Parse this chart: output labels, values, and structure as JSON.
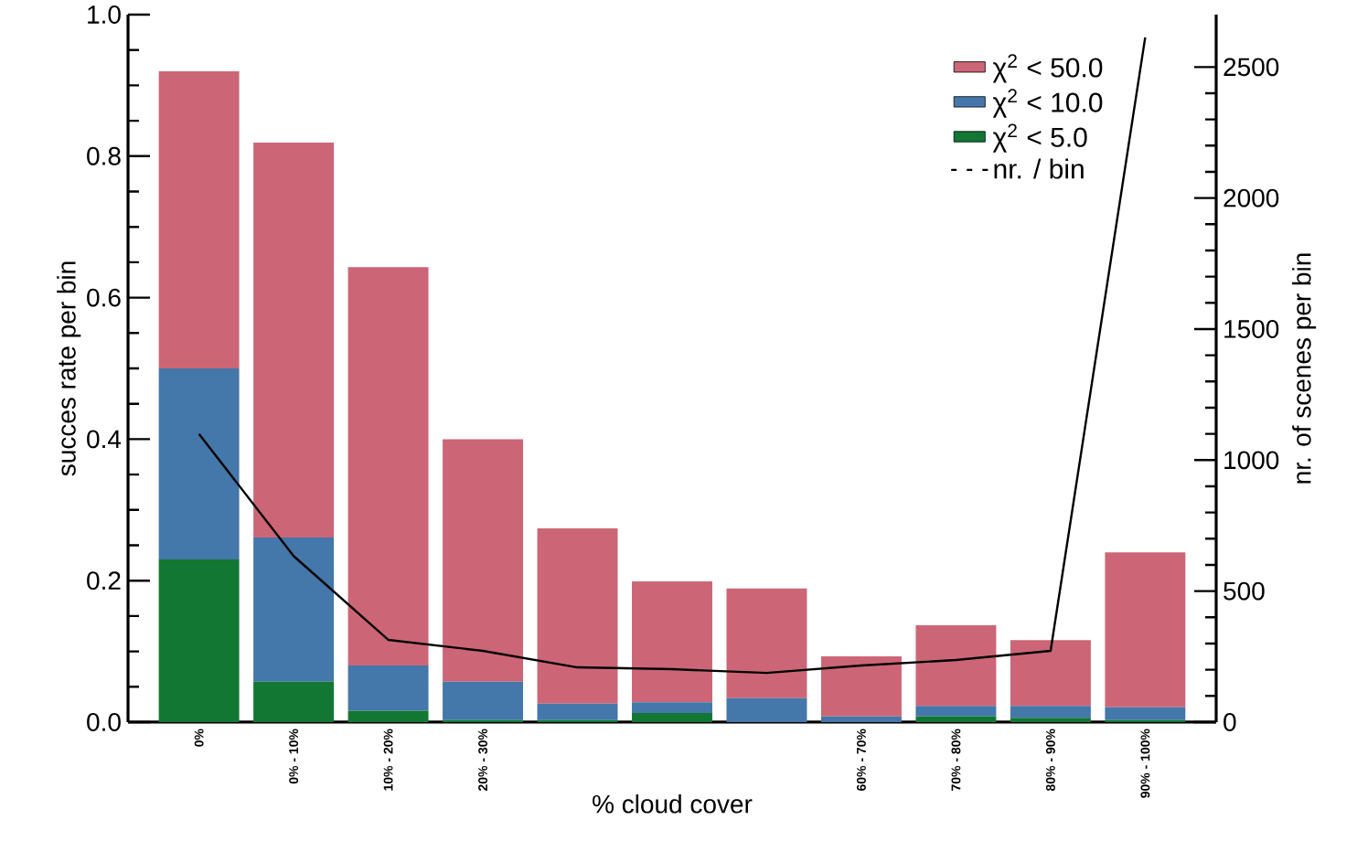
{
  "chart_data": {
    "type": "bar",
    "stacked": true,
    "xlabel": "% cloud cover",
    "ylabel": "succes rate per bin",
    "y2label": "nr. of scenes per bin",
    "categories": [
      "0%",
      "0% - 10%",
      "10% - 20%",
      "20% - 30%",
      null,
      null,
      null,
      "60% - 70%",
      "70% - 80%",
      "80% - 90%",
      "90% - 100%"
    ],
    "series": [
      {
        "name": "χ$^{2}$ <   5.0",
        "color": "#117733",
        "values": [
          0.23,
          0.057,
          0.016,
          0.003,
          0.003,
          0.013,
          0,
          0,
          0.008,
          0.006,
          0.003
        ]
      },
      {
        "name": "χ$^{2}$ < 10.0",
        "color": "#4477aa",
        "values": [
          0.27,
          0.204,
          0.064,
          0.054,
          0.023,
          0.015,
          0.034,
          0.008,
          0.015,
          0.017,
          0.018
        ]
      },
      {
        "name": "χ$^{2}$ < 50.0",
        "color": "#cc6677",
        "values": [
          0.42,
          0.558,
          0.563,
          0.343,
          0.248,
          0.171,
          0.155,
          0.085,
          0.114,
          0.093,
          0.219
        ]
      },
      {
        "name": "nr. / bin",
        "type": "line",
        "axis": "y2",
        "color": "#000000",
        "values": [
          1100,
          634,
          314,
          272,
          209,
          202,
          188,
          216,
          237,
          272,
          2613
        ]
      }
    ],
    "ylim": [
      0,
      1.0
    ],
    "yticks": [
      {
        "value": 0,
        "label": "0.0"
      },
      0.2,
      0.4,
      0.6,
      0.8,
      {
        "value": 1.0,
        "label": "1.0"
      }
    ],
    "y2lim": [
      0,
      2700
    ],
    "y2ticks": [
      0,
      500,
      1000,
      1500,
      2000,
      2500
    ],
    "legend": "top right",
    "grid": false
  }
}
